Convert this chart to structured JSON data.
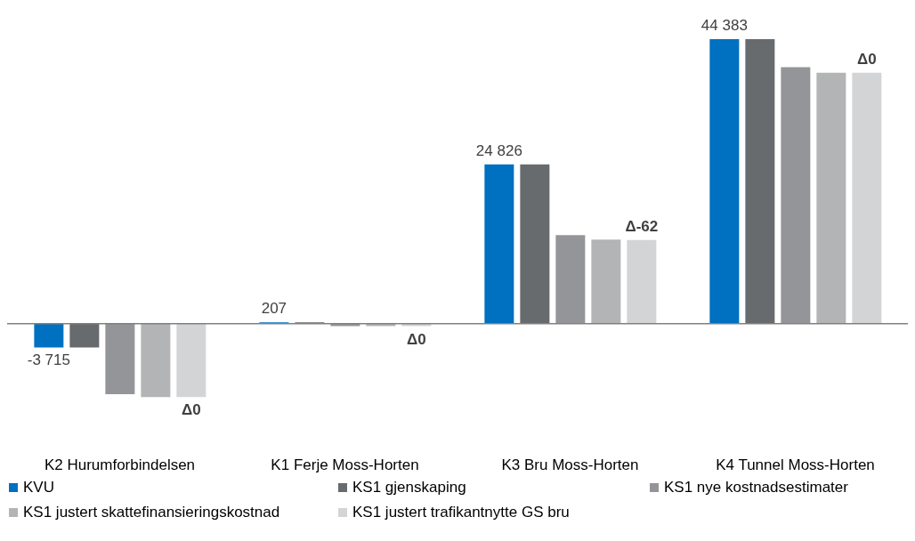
{
  "chart_data": {
    "type": "bar",
    "categories": [
      "K2 Hurumforbindelsen",
      "K1 Ferje Moss-Horten",
      "K3 Bru Moss-Horten",
      "K4 Tunnel Moss-Horten"
    ],
    "series": [
      {
        "name": "KVU",
        "color": "#0070c0",
        "values": [
          -3715,
          207,
          24826,
          44383
        ],
        "value_labels": [
          "-3 715",
          "207",
          "24 826",
          "44 383"
        ]
      },
      {
        "name": "KS1 gjenskaping",
        "color": "#686b6e",
        "values": [
          -3715,
          207,
          24826,
          44383
        ]
      },
      {
        "name": "KS1 nye kostnadsestimater",
        "color": "#939598",
        "values": [
          -11000,
          -400,
          13800,
          40000
        ]
      },
      {
        "name": "KS1 justert skattefinansieringskostnad",
        "color": "#b3b4b6",
        "values": [
          -11450,
          -400,
          13100,
          39150
        ]
      },
      {
        "name": "KS1 justert trafikantnytte GS bru",
        "color": "#d3d4d6",
        "values": [
          -11450,
          -400,
          13050,
          39150
        ],
        "value_labels": [
          "Δ0",
          "Δ0",
          "Δ-62",
          "Δ0"
        ]
      }
    ],
    "legend": "bottom"
  }
}
